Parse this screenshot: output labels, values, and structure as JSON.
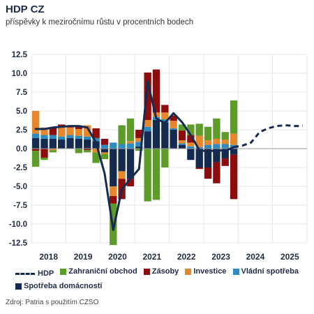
{
  "title": "HDP CZ",
  "subtitle": "příspěvky k meziročnímu růstu v procentních bodech",
  "source": "Zdroj: Patria s použitím CZSO",
  "chart_data": {
    "type": "bar",
    "stacked": true,
    "ylim": [
      -12.5,
      12.5
    ],
    "yticks": [
      "12.5",
      "10.0",
      "7.5",
      "5.0",
      "2.5",
      "0.0",
      "-2.5",
      "-5.0",
      "-7.5",
      "-10.0",
      "-12.5"
    ],
    "ytick_values": [
      12.5,
      10,
      7.5,
      5,
      2.5,
      0,
      -2.5,
      -5,
      -7.5,
      -10,
      -12.5
    ],
    "year_labels": [
      "2018",
      "2019",
      "2020",
      "2021",
      "2022",
      "2023",
      "2024",
      "2025"
    ],
    "x_domain": [
      0,
      32
    ],
    "categories": [
      "2018Q1",
      "2018Q2",
      "2018Q3",
      "2018Q4",
      "2019Q1",
      "2019Q2",
      "2019Q3",
      "2019Q4",
      "2020Q1",
      "2020Q2",
      "2020Q3",
      "2020Q4",
      "2021Q1",
      "2021Q2",
      "2021Q3",
      "2021Q4",
      "2022Q1",
      "2022Q2",
      "2022Q3",
      "2022Q4",
      "2023Q1",
      "2023Q2",
      "2023Q3",
      "2023Q4"
    ],
    "series": [
      {
        "name": "Spotřeba domácností",
        "color": "#152a4f",
        "values": [
          1.4,
          1.3,
          1.3,
          1.2,
          1.4,
          1.3,
          1.2,
          1.0,
          -0.5,
          -5.0,
          -3.0,
          -4.0,
          0.3,
          2.3,
          3.8,
          3.5,
          2.5,
          0.5,
          -1.5,
          -2.5,
          -2.5,
          -1.8,
          -1.3,
          -0.8
        ]
      },
      {
        "name": "Vládní spotřeba",
        "color": "#2e8bc0",
        "values": [
          0.6,
          0.5,
          0.5,
          0.4,
          0.4,
          0.4,
          0.4,
          0.4,
          0.5,
          0.8,
          0.6,
          0.7,
          0.6,
          0.6,
          0.4,
          0.4,
          0.2,
          0.2,
          0.3,
          0.2,
          0.5,
          0.6,
          0.6,
          0.5
        ]
      },
      {
        "name": "Investice",
        "color": "#e5872c",
        "values": [
          3.0,
          1.0,
          -0.2,
          1.3,
          1.0,
          0.9,
          1.5,
          -0.5,
          -0.2,
          -1.3,
          -1.0,
          0.3,
          0.5,
          0.9,
          0.6,
          0.9,
          1.0,
          0.4,
          0.5,
          1.5,
          0.6,
          0.7,
          0.6,
          1.5
        ]
      },
      {
        "name": "Zásoby",
        "color": "#8b0d0d",
        "values": [
          -0.3,
          -1.2,
          1.0,
          0.3,
          0.3,
          0.4,
          -0.2,
          1.3,
          0.8,
          -1.0,
          -2.7,
          -1.0,
          1.1,
          6.3,
          5.7,
          1.0,
          0.7,
          1.3,
          1.0,
          -0.2,
          -1.5,
          -2.8,
          -1.0,
          -5.9
        ]
      },
      {
        "name": "Zahraniční obchod",
        "color": "#5d9b2b",
        "values": [
          -2.1,
          -0.3,
          -0.3,
          0.0,
          0.0,
          -0.6,
          -0.3,
          -1.4,
          -0.7,
          -5.5,
          2.5,
          3.0,
          -0.3,
          -7.0,
          -6.8,
          -2.5,
          0.0,
          0.8,
          1.4,
          1.6,
          1.8,
          2.7,
          1.0,
          4.4
        ]
      }
    ],
    "hdp": {
      "name": "HDP",
      "color": "#152a4f",
      "actual_x": [
        0.5,
        1.5,
        2.5,
        3.5,
        4.5,
        5.5,
        6.5,
        7.5,
        8.5,
        9.5,
        10.5,
        11.5,
        12.5,
        13.5,
        14.5,
        15.5,
        16.5,
        17.5,
        18.5,
        19.5,
        20.5,
        21.5,
        22.5,
        23.5
      ],
      "actual": [
        2.6,
        2.6,
        2.8,
        2.9,
        3.0,
        3.0,
        2.8,
        0.8,
        -3.3,
        -10.8,
        -5.4,
        -4.0,
        -2.7,
        8.9,
        4.0,
        3.4,
        4.7,
        3.5,
        1.8,
        -0.2,
        -0.4,
        -0.2,
        -0.3,
        0.2
      ],
      "forecast_x": [
        23.5,
        24.5,
        25.5,
        26.5,
        27.5,
        28.5,
        29.5,
        30.5,
        31.5
      ],
      "forecast": [
        0.2,
        0.4,
        0.8,
        2.2,
        2.7,
        3.0,
        3.1,
        3.0,
        3.0
      ]
    }
  },
  "legend": {
    "hdp": "HDP",
    "zahranicni": "Zahraniční obchod",
    "zasoby": "Zásoby",
    "investice": "Investice",
    "vladni": "Vládní spotřeba",
    "domacnosti": "Spotřeba domácností"
  },
  "colors": {
    "domacnosti": "#152a4f",
    "vladni": "#2e8bc0",
    "investice": "#e5872c",
    "zasoby": "#8b0d0d",
    "zahranicni": "#5d9b2b",
    "gridline": "#e5e5e5"
  }
}
